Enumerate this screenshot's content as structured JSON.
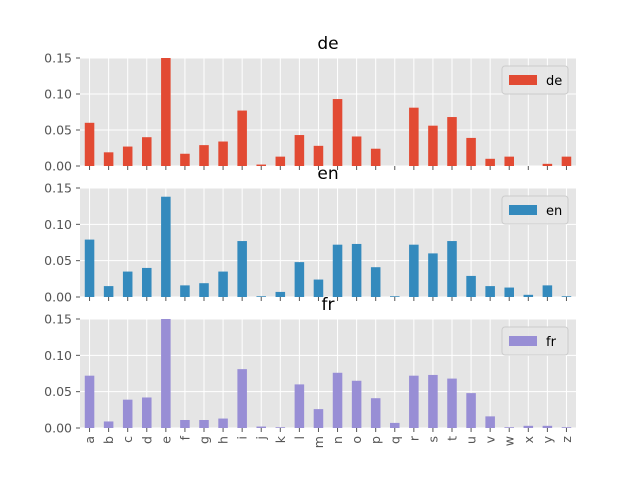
{
  "chart_data": [
    {
      "type": "bar",
      "title": "de",
      "legend_label": "de",
      "legend_position": "top-right",
      "color": "#E24A33",
      "ylim": [
        0,
        0.15
      ],
      "yticks": [
        "0.00",
        "0.05",
        "0.10",
        "0.15"
      ],
      "grid": true,
      "categories": [
        "a",
        "b",
        "c",
        "d",
        "e",
        "f",
        "g",
        "h",
        "i",
        "j",
        "k",
        "l",
        "m",
        "n",
        "o",
        "p",
        "q",
        "r",
        "s",
        "t",
        "u",
        "v",
        "w",
        "x",
        "y",
        "z"
      ],
      "values": [
        0.06,
        0.019,
        0.027,
        0.04,
        0.15,
        0.017,
        0.029,
        0.034,
        0.077,
        0.002,
        0.013,
        0.043,
        0.028,
        0.093,
        0.041,
        0.024,
        0.0,
        0.081,
        0.056,
        0.068,
        0.039,
        0.01,
        0.013,
        0.0,
        0.003,
        0.013
      ]
    },
    {
      "type": "bar",
      "title": "en",
      "legend_label": "en",
      "legend_position": "top-right",
      "color": "#348ABD",
      "ylim": [
        0,
        0.15
      ],
      "yticks": [
        "0.00",
        "0.05",
        "0.10",
        "0.15"
      ],
      "grid": true,
      "categories": [
        "a",
        "b",
        "c",
        "d",
        "e",
        "f",
        "g",
        "h",
        "i",
        "j",
        "k",
        "l",
        "m",
        "n",
        "o",
        "p",
        "q",
        "r",
        "s",
        "t",
        "u",
        "v",
        "w",
        "x",
        "y",
        "z"
      ],
      "values": [
        0.079,
        0.015,
        0.035,
        0.04,
        0.138,
        0.016,
        0.019,
        0.035,
        0.077,
        0.001,
        0.007,
        0.048,
        0.024,
        0.072,
        0.073,
        0.041,
        0.001,
        0.072,
        0.06,
        0.077,
        0.029,
        0.015,
        0.013,
        0.003,
        0.016,
        0.001
      ]
    },
    {
      "type": "bar",
      "title": "fr",
      "legend_label": "fr",
      "legend_position": "top-right",
      "color": "#988ED5",
      "ylim": [
        0,
        0.15
      ],
      "yticks": [
        "0.00",
        "0.05",
        "0.10",
        "0.15"
      ],
      "grid": true,
      "xlabel_ticks": true,
      "categories": [
        "a",
        "b",
        "c",
        "d",
        "e",
        "f",
        "g",
        "h",
        "i",
        "j",
        "k",
        "l",
        "m",
        "n",
        "o",
        "p",
        "q",
        "r",
        "s",
        "t",
        "u",
        "v",
        "w",
        "x",
        "y",
        "z"
      ],
      "values": [
        0.072,
        0.009,
        0.039,
        0.042,
        0.15,
        0.011,
        0.011,
        0.013,
        0.081,
        0.002,
        0.001,
        0.06,
        0.026,
        0.076,
        0.065,
        0.041,
        0.007,
        0.072,
        0.073,
        0.068,
        0.048,
        0.016,
        0.001,
        0.003,
        0.003,
        0.001
      ]
    }
  ]
}
